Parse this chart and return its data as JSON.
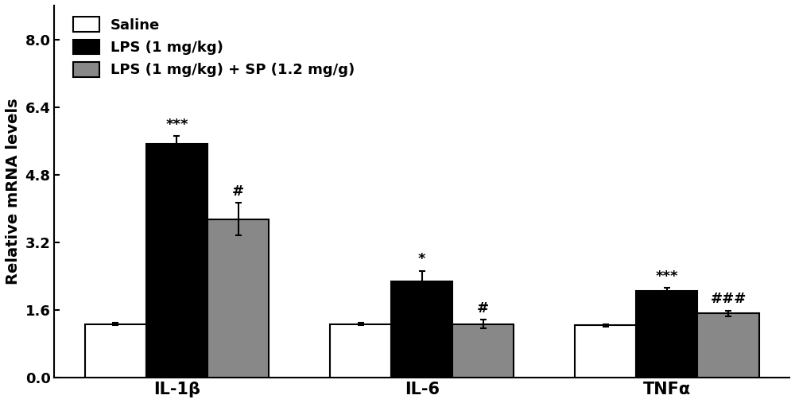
{
  "groups": [
    "IL-1β",
    "IL-6",
    "TNFα"
  ],
  "series": [
    {
      "label": "Saline",
      "color": "#ffffff",
      "edgecolor": "#000000",
      "values": [
        1.27,
        1.27,
        1.24
      ],
      "errors": [
        0.03,
        0.03,
        0.03
      ]
    },
    {
      "label": "LPS (1 mg/kg)",
      "color": "#000000",
      "edgecolor": "#000000",
      "values": [
        5.52,
        2.28,
        2.05
      ],
      "errors": [
        0.2,
        0.25,
        0.07
      ]
    },
    {
      "label": "LPS (1 mg/kg) + SP (1.2 mg/g)",
      "color": "#888888",
      "edgecolor": "#000000",
      "values": [
        3.75,
        1.27,
        1.52
      ],
      "errors": [
        0.38,
        0.1,
        0.07
      ]
    }
  ],
  "ylabel": "Relative mRNA levels",
  "ylim": [
    0.0,
    8.8
  ],
  "yticks": [
    0.0,
    1.6,
    3.2,
    4.8,
    6.4,
    8.0
  ],
  "significance_lps": [
    "***",
    "*",
    "***"
  ],
  "significance_sp": [
    "#",
    "#",
    "###"
  ],
  "bar_width": 0.25,
  "fontsize_axis_label": 14,
  "fontsize_tick": 13,
  "fontsize_legend": 13,
  "fontsize_sig": 13,
  "background_color": "#ffffff"
}
